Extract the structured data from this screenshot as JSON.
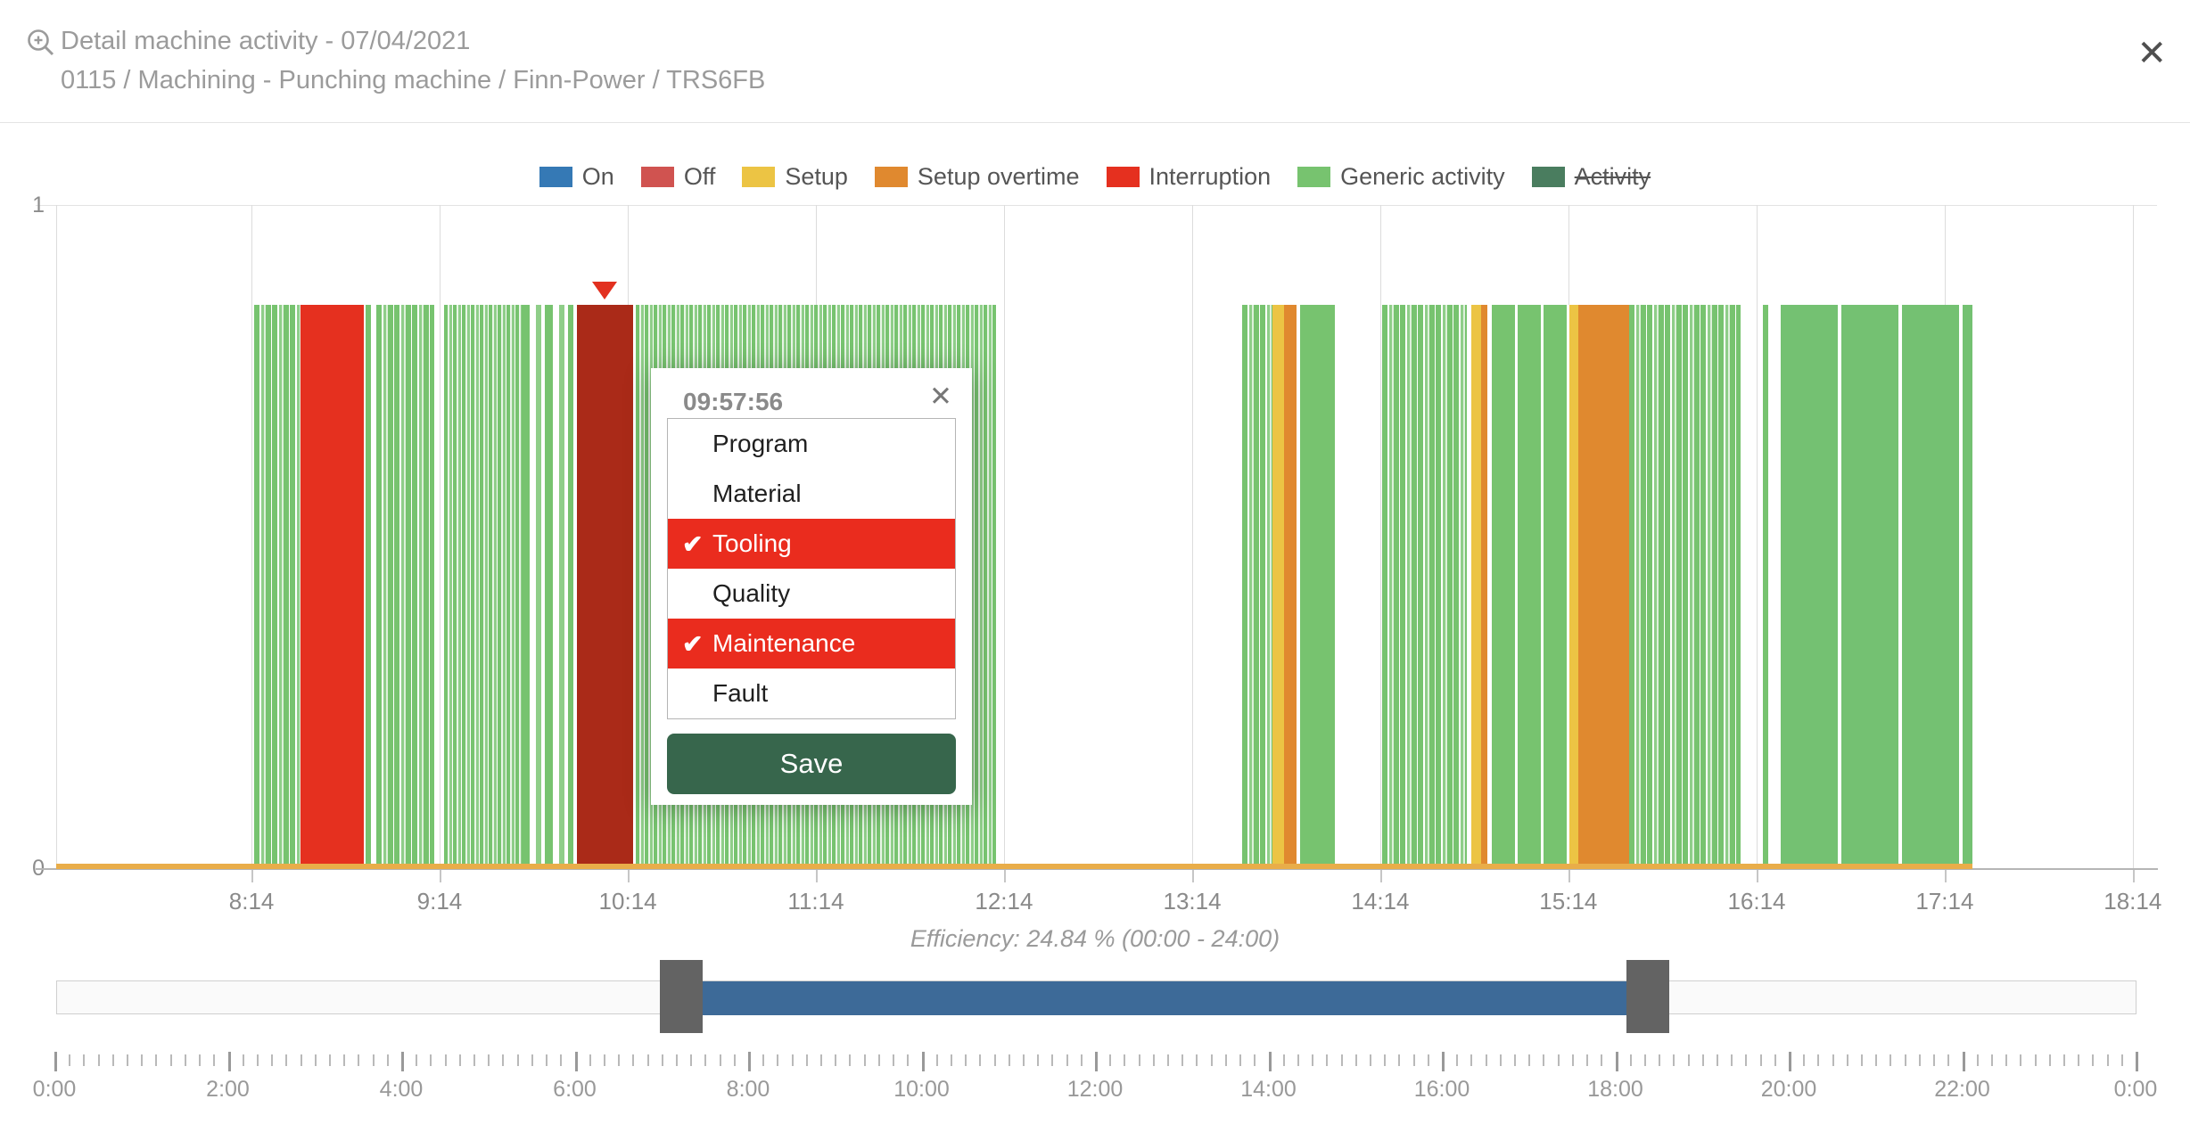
{
  "colors": {
    "on": "#3579b5",
    "off": "#d05350",
    "setup": "#ecc444",
    "setup_overtime": "#e0892f",
    "interruption": "#e5301f",
    "interruption_dark": "#aa2a18",
    "generic": "#77c36f",
    "activity": "#4a7d5f",
    "baseline_setup_line": "#e9ad49",
    "selected_option": "#ea2c1e",
    "save_button": "#37664c",
    "slider_range": "#3d6a98",
    "slider_handle": "#636363",
    "marker": "#e2301f"
  },
  "header": {
    "title": "Detail machine activity - 07/04/2021",
    "subtitle": "0115 / Machining - Punching machine / Finn-Power / TRS6FB",
    "close_glyph": "✕"
  },
  "legend": {
    "items": [
      {
        "label": "On",
        "color": "#3579b5",
        "strikethrough": false
      },
      {
        "label": "Off",
        "color": "#d05350",
        "strikethrough": false
      },
      {
        "label": "Setup",
        "color": "#ecc444",
        "strikethrough": false
      },
      {
        "label": "Setup overtime",
        "color": "#e0892f",
        "strikethrough": false
      },
      {
        "label": "Interruption",
        "color": "#e5301f",
        "strikethrough": false
      },
      {
        "label": "Generic activity",
        "color": "#77c36f",
        "strikethrough": false
      },
      {
        "label": "Activity",
        "color": "#4a7d5f",
        "strikethrough": true
      }
    ]
  },
  "chart_data": {
    "type": "bar",
    "title": "Machine activity timeline 07/04/2021, visible window 07:14 - 18:14",
    "y_axis": {
      "max_label": "1",
      "min_label": "0"
    },
    "x_ticks": [
      {
        "label": "8:14",
        "pct": 9.39
      },
      {
        "label": "9:14",
        "pct": 18.43
      },
      {
        "label": "10:14",
        "pct": 27.48
      },
      {
        "label": "11:14",
        "pct": 36.52
      },
      {
        "label": "12:14",
        "pct": 45.56
      },
      {
        "label": "13:14",
        "pct": 54.61
      },
      {
        "label": "14:14",
        "pct": 63.65
      },
      {
        "label": "15:14",
        "pct": 72.69
      },
      {
        "label": "16:14",
        "pct": 81.74
      },
      {
        "label": "17:14",
        "pct": 90.78
      },
      {
        "label": "18:14",
        "pct": 99.82
      }
    ],
    "segments": [
      {
        "time": "08:15-08:30",
        "activity": "Generic activity",
        "style": "striped",
        "color": "generic",
        "left_pct": 9.52,
        "width_pct": 2.23
      },
      {
        "time": "08:30-08:50",
        "activity": "Interruption",
        "style": "solid",
        "color": "interruption",
        "left_pct": 11.74,
        "width_pct": 3.04
      },
      {
        "time": "08:50-08:52",
        "activity": "Generic activity",
        "style": "solid",
        "color": "generic",
        "left_pct": 14.87,
        "width_pct": 0.25
      },
      {
        "time": "08:54-09:12",
        "activity": "Generic activity",
        "style": "striped",
        "color": "generic",
        "left_pct": 15.39,
        "width_pct": 2.79
      },
      {
        "time": "09:15-09:40",
        "activity": "Generic activity",
        "style": "dense",
        "color": "generic",
        "left_pct": 18.65,
        "width_pct": 3.73
      },
      {
        "time": "09:40-09:57",
        "activity": "Generic activity",
        "style": "sparse",
        "color": "generic",
        "left_pct": 22.37,
        "width_pct": 2.49
      },
      {
        "time": "09:58-10:16",
        "activity": "Interruption (annotated: Tooling, Maintenance)",
        "style": "solid",
        "color": "interruption_dark",
        "left_pct": 25.03,
        "width_pct": 2.7
      },
      {
        "time": "10:17-12:11",
        "activity": "Generic activity",
        "style": "dense",
        "color": "generic",
        "left_pct": 27.86,
        "width_pct": 17.32
      },
      {
        "time": "13:30-13:40",
        "activity": "Generic activity",
        "style": "striped",
        "color": "generic",
        "left_pct": 57.01,
        "width_pct": 1.46
      },
      {
        "time": "13:40-13:43",
        "activity": "Setup",
        "style": "solid",
        "color": "setup",
        "left_pct": 58.47,
        "width_pct": 0.56
      },
      {
        "time": "13:43-13:47",
        "activity": "Setup overtime",
        "style": "solid",
        "color": "setup_overtime",
        "left_pct": 59.02,
        "width_pct": 0.6
      },
      {
        "time": "13:48-13:59",
        "activity": "Generic activity",
        "style": "solid",
        "color": "generic",
        "left_pct": 59.8,
        "width_pct": 1.67
      },
      {
        "time": "14:14-14:41",
        "activity": "Generic activity",
        "style": "striped",
        "color": "generic",
        "left_pct": 63.74,
        "width_pct": 4.07
      },
      {
        "time": "14:43-14:46",
        "activity": "Setup",
        "style": "solid",
        "color": "setup",
        "left_pct": 68.02,
        "width_pct": 0.47
      },
      {
        "time": "14:46-14:48",
        "activity": "Setup overtime",
        "style": "solid",
        "color": "setup_overtime",
        "left_pct": 68.49,
        "width_pct": 0.3
      },
      {
        "time": "14:49-15:14",
        "activity": "Generic activity",
        "style": "blocks",
        "color": "generic",
        "left_pct": 69.01,
        "width_pct": 3.73
      },
      {
        "time": "15:14-15:17",
        "activity": "Setup",
        "style": "solid",
        "color": "setup",
        "left_pct": 72.74,
        "width_pct": 0.43
      },
      {
        "time": "15:17-15:33",
        "activity": "Setup overtime",
        "style": "solid",
        "color": "setup_overtime",
        "left_pct": 73.17,
        "width_pct": 2.44
      },
      {
        "time": "15:33-16:09",
        "activity": "Generic activity",
        "style": "striped",
        "color": "generic",
        "left_pct": 75.61,
        "width_pct": 5.36
      },
      {
        "time": "16:16-16:17",
        "activity": "Generic activity",
        "style": "solid",
        "color": "generic",
        "left_pct": 82.04,
        "width_pct": 0.25
      },
      {
        "time": "16:22-17:23",
        "activity": "Generic activity",
        "style": "blocks_wide",
        "color": "generic",
        "left_pct": 82.9,
        "width_pct": 9.22
      }
    ],
    "baseline": {
      "left_pct": 0,
      "width_pct": 92.11,
      "color": "baseline_setup_line"
    },
    "marker": {
      "time": "09:57:56",
      "pct": 26.38
    },
    "efficiency_note": "Efficiency: 24.84 % (00:00 - 24:00)"
  },
  "popup": {
    "time": "09:57:56",
    "close_glyph": "✕",
    "check_glyph": "✔",
    "options": [
      {
        "label": "Program",
        "selected": false
      },
      {
        "label": "Material",
        "selected": false
      },
      {
        "label": "Tooling",
        "selected": true
      },
      {
        "label": "Quality",
        "selected": false
      },
      {
        "label": "Maintenance",
        "selected": true
      },
      {
        "label": "Fault",
        "selected": false
      }
    ],
    "save_label": "Save"
  },
  "slider": {
    "range_left_pct": 31.08,
    "range_width_pct": 44.41,
    "handle_left_pct": 29.02,
    "handle_right_pct": 75.48,
    "handle_width_pct": 2.06
  },
  "ruler": {
    "minor_step_minutes": 10,
    "major_step_minutes": 120,
    "total_minutes": 1440,
    "labels": [
      "0:00",
      "2:00",
      "4:00",
      "6:00",
      "8:00",
      "10:00",
      "12:00",
      "14:00",
      "16:00",
      "18:00",
      "20:00",
      "22:00",
      "0:00"
    ]
  }
}
